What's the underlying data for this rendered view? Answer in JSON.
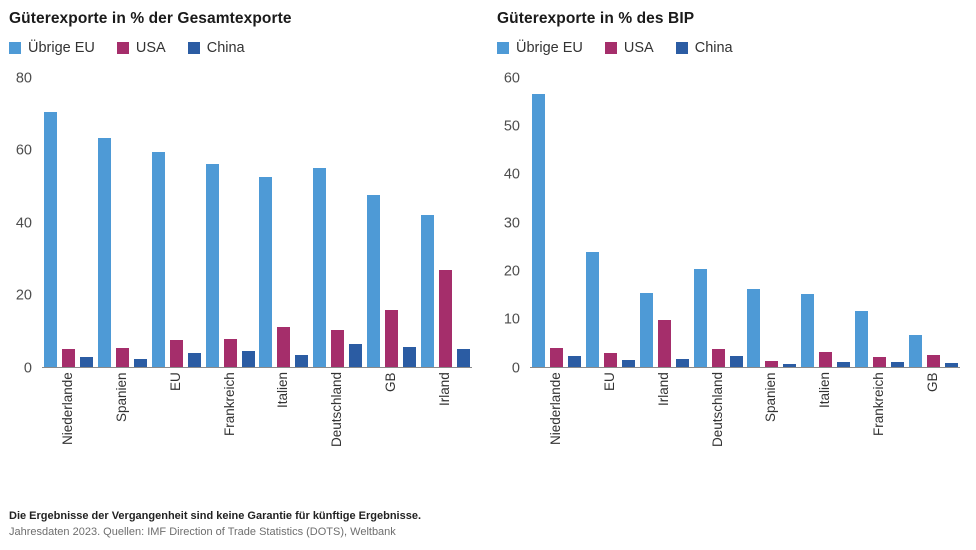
{
  "colors": {
    "uebrige_eu": "#4e9ad6",
    "usa": "#a52e6b",
    "china": "#2b5ca3",
    "axis_line": "#8a8a8a"
  },
  "footer": {
    "disclaimer": "Die Ergebnisse der Vergangenheit sind keine Garantie für künftige Ergebnisse.",
    "source": "Jahresdaten 2023. Quellen: IMF Direction of Trade Statistics (DOTS), Weltbank"
  },
  "chart_data": [
    {
      "type": "bar",
      "title": "Güterexporte in % der Gesamtexporte",
      "categories": [
        "Niederlande",
        "Spanien",
        "EU",
        "Frankreich",
        "Italien",
        "Deutschland",
        "GB",
        "Irland"
      ],
      "series": [
        {
          "name": "Übrige EU",
          "color": "#4e9ad6",
          "values": [
            70.5,
            63.5,
            59.5,
            56.3,
            52.7,
            55.0,
            47.5,
            42.2
          ]
        },
        {
          "name": "USA",
          "color": "#a52e6b",
          "values": [
            5.0,
            5.2,
            7.6,
            7.8,
            11.2,
            10.2,
            15.8,
            26.8
          ]
        },
        {
          "name": "China",
          "color": "#2b5ca3",
          "values": [
            2.8,
            2.2,
            3.8,
            4.4,
            3.4,
            6.4,
            5.5,
            5.0
          ]
        }
      ],
      "xlabel": "",
      "ylabel": "",
      "ylim": [
        0,
        80
      ],
      "yticks": [
        0,
        20,
        40,
        60,
        80
      ],
      "grid": false,
      "legend_position": "top-left"
    },
    {
      "type": "bar",
      "title": "Güterexporte in % des BIP",
      "categories": [
        "Niederlande",
        "EU",
        "Irland",
        "Deutschland",
        "Spanien",
        "Italien",
        "Frankreich",
        "GB"
      ],
      "series": [
        {
          "name": "Übrige EU",
          "color": "#4e9ad6",
          "values": [
            56.7,
            23.9,
            15.4,
            20.4,
            16.2,
            15.1,
            11.7,
            6.7
          ]
        },
        {
          "name": "USA",
          "color": "#a52e6b",
          "values": [
            3.9,
            3.0,
            9.8,
            3.7,
            1.3,
            3.2,
            2.1,
            2.4
          ]
        },
        {
          "name": "China",
          "color": "#2b5ca3",
          "values": [
            2.2,
            1.4,
            1.7,
            2.3,
            0.6,
            1.0,
            1.0,
            0.8
          ]
        }
      ],
      "xlabel": "",
      "ylabel": "",
      "ylim": [
        0,
        60
      ],
      "yticks": [
        0,
        10,
        20,
        30,
        40,
        50,
        60
      ],
      "grid": false,
      "legend_position": "top-left"
    }
  ]
}
